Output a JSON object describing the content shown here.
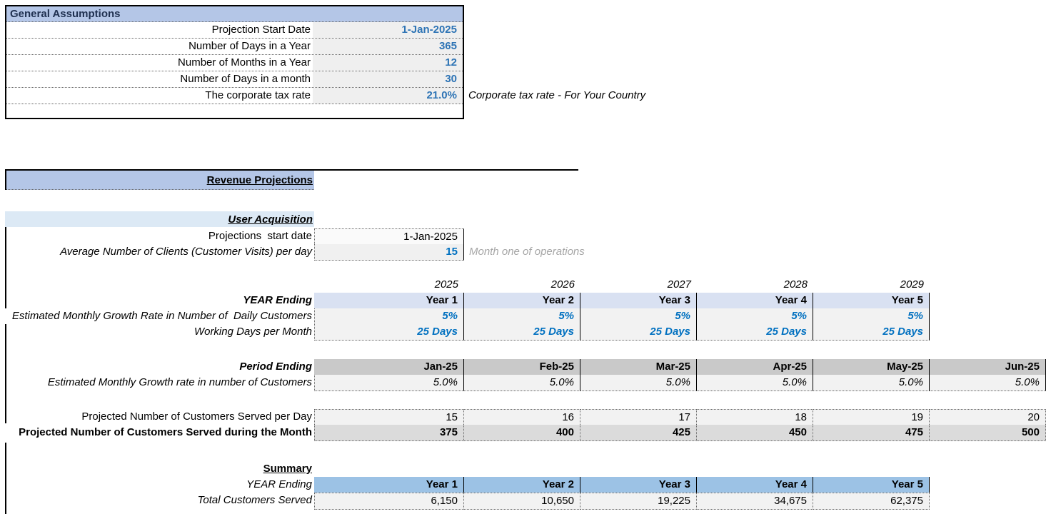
{
  "general_assumptions": {
    "title": "General Assumptions",
    "rows": [
      {
        "label": "Projection Start Date",
        "value": "1-Jan-2025"
      },
      {
        "label": "Number of Days in a Year",
        "value": "365"
      },
      {
        "label": "Number of Months in a Year",
        "value": "12"
      },
      {
        "label": "Number of Days in a month",
        "value": "30"
      },
      {
        "label": "The corporate tax rate",
        "value": "21.0%"
      }
    ],
    "tax_note": "Corporate tax rate - For Your Country"
  },
  "revenue_projections": {
    "title": "Revenue Projections"
  },
  "user_acquisition": {
    "title": "User Acquisition",
    "start_date_label": "Projections  start date",
    "start_date_value": "1-Jan-2025",
    "avg_clients_label": "Average Number of Clients (Customer Visits) per day",
    "avg_clients_value": "15",
    "avg_clients_note": "Month one of operations"
  },
  "year_table": {
    "years": [
      "2025",
      "2026",
      "2027",
      "2028",
      "2029"
    ],
    "year_ending_label": "YEAR Ending",
    "year_labels": [
      "Year 1",
      "Year 2",
      "Year 3",
      "Year 4",
      "Year 5"
    ],
    "growth_label": "Estimated Monthly Growth Rate in Number of  Daily Customers",
    "growth_values": [
      "5%",
      "5%",
      "5%",
      "5%",
      "5%"
    ],
    "working_days_label": "Working Days per Month",
    "working_days_values": [
      "25 Days",
      "25 Days",
      "25 Days",
      "25 Days",
      "25 Days"
    ]
  },
  "period_table": {
    "period_ending_label": "Period Ending",
    "periods": [
      "Jan-25",
      "Feb-25",
      "Mar-25",
      "Apr-25",
      "May-25",
      "Jun-25"
    ],
    "growth_label": "Estimated Monthly Growth rate in number of Customers",
    "growth_values": [
      "5.0%",
      "5.0%",
      "5.0%",
      "5.0%",
      "5.0%",
      "5.0%"
    ],
    "per_day_label": "Projected Number of Customers Served per Day",
    "per_day_values": [
      "15",
      "16",
      "17",
      "18",
      "19",
      "20"
    ],
    "per_month_label": "Projected Number of Customers Served during the Month",
    "per_month_values": [
      "375",
      "400",
      "425",
      "450",
      "475",
      "500"
    ]
  },
  "summary": {
    "title": "Summary",
    "year_ending_label": "YEAR Ending",
    "year_labels": [
      "Year 1",
      "Year 2",
      "Year 3",
      "Year 4",
      "Year 5"
    ],
    "total_label": "Total Customers Served",
    "total_values": [
      "6,150",
      "10,650",
      "19,225",
      "34,675",
      "62,375"
    ]
  },
  "colors": {
    "header_fill": "#B4C6E7",
    "header_text": "#1F3050",
    "section_fill": "#DCE9F5",
    "year_header_fill": "#D9E1F2",
    "summary_header_fill": "#9CC2E5",
    "period_header_fill": "#C9C9C9",
    "input_cell_fill": "#F2F2F2",
    "month_total_fill": "#DBDBDB",
    "value_blue": "#0070C0",
    "assumption_value_blue": "#2E74B5",
    "note_gray": "#A6A6A6"
  }
}
